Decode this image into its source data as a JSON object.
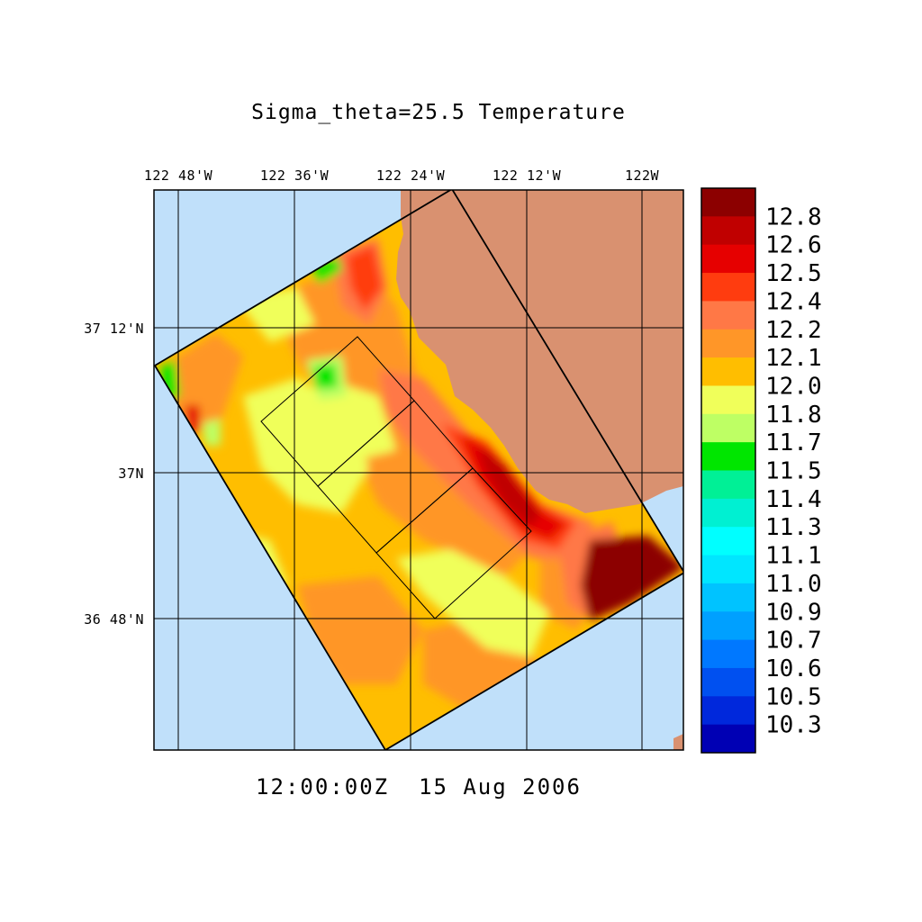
{
  "title": "Sigma_theta=25.5 Temperature",
  "timestamp": "12:00:00Z  15 Aug 2006",
  "map": {
    "lon_labels": [
      "122 48'W",
      "122 36'W",
      "122 24'W",
      "122 12'W",
      "122W"
    ],
    "lat_labels": [
      "37 12'N",
      "37N",
      "36 48'N"
    ],
    "lon_ticks": [
      -122.8,
      -122.6,
      -122.4,
      -122.2,
      -122.0
    ],
    "lat_ticks": [
      37.2,
      37.0,
      36.8
    ],
    "lon_range": [
      -122.84,
      -121.93
    ],
    "lat_range": [
      36.62,
      37.39
    ],
    "colors": {
      "ocean": "#c0e0fa",
      "land": "#d99170"
    }
  },
  "colorbar": {
    "labels": [
      "12.8",
      "12.6",
      "12.5",
      "12.4",
      "12.2",
      "12.1",
      "12.0",
      "11.8",
      "11.7",
      "11.5",
      "11.4",
      "11.3",
      "11.1",
      "11.0",
      "10.9",
      "10.7",
      "10.6",
      "10.5",
      "10.3"
    ],
    "colors": [
      "#8c0000",
      "#c00000",
      "#e60000",
      "#ff3c0f",
      "#ff7846",
      "#ff9628",
      "#ffbe00",
      "#f0ff5a",
      "#beff64",
      "#00e600",
      "#00f096",
      "#00f0d2",
      "#00ffff",
      "#00e6ff",
      "#00c3ff",
      "#00a0ff",
      "#0078ff",
      "#0050f0",
      "#0028dc",
      "#0000b4"
    ]
  },
  "chart_data": {
    "type": "heatmap",
    "title": "Sigma_theta=25.5 Temperature",
    "subtitle": "12:00:00Z  15 Aug 2006",
    "x_ticks": [
      "122 48'W",
      "122 36'W",
      "122 24'W",
      "122 12'W",
      "122W"
    ],
    "y_ticks": [
      "37 12'N",
      "37N",
      "36 48'N"
    ],
    "colorbar_levels": [
      12.8,
      12.6,
      12.5,
      12.4,
      12.2,
      12.1,
      12.0,
      11.8,
      11.7,
      11.5,
      11.4,
      11.3,
      11.1,
      11.0,
      10.9,
      10.7,
      10.6,
      10.5,
      10.3
    ],
    "value_range": [
      10.3,
      12.8
    ]
  }
}
